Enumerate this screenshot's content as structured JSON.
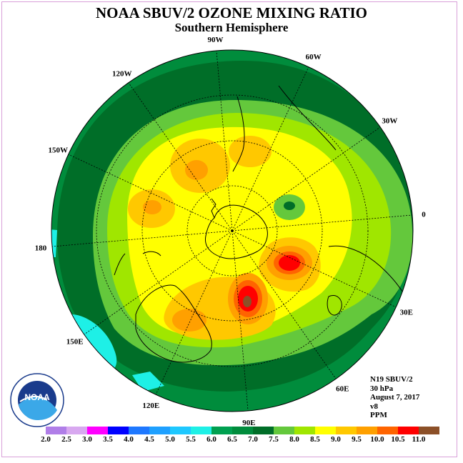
{
  "title": "NOAA SBUV/2 OZONE MIXING RATIO",
  "subtitle": "Southern Hemisphere",
  "logo_text": "NOAA",
  "longitude_labels": [
    {
      "text": "90W",
      "lon": -90
    },
    {
      "text": "60W",
      "lon": -60
    },
    {
      "text": "30W",
      "lon": -30
    },
    {
      "text": "0",
      "lon": 0
    },
    {
      "text": "30E",
      "lon": 30
    },
    {
      "text": "60E",
      "lon": 60
    },
    {
      "text": "90E",
      "lon": 90
    },
    {
      "text": "120E",
      "lon": 120
    },
    {
      "text": "150E",
      "lon": 150
    },
    {
      "text": "180",
      "lon": 180
    },
    {
      "text": "150W",
      "lon": -150
    },
    {
      "text": "120W",
      "lon": -120
    }
  ],
  "info": {
    "satellite": "N19 SBUV/2",
    "level": "30 hPa",
    "date": "August 7, 2017",
    "version": "v8",
    "units": "PPM"
  },
  "scale": {
    "labels": [
      "2.0",
      "2.5",
      "3.0",
      "3.5",
      "4.0",
      "4.5",
      "5.0",
      "5.5",
      "6.0",
      "6.5",
      "7.0",
      "7.5",
      "8.0",
      "8.5",
      "9.0",
      "9.5",
      "10.0",
      "10.5",
      "11.0"
    ],
    "colors": [
      "#b07ee8",
      "#d8a8f0",
      "#ff00ff",
      "#0000ff",
      "#1e78ff",
      "#1ea0ff",
      "#1ec8ff",
      "#1ef0e6",
      "#00a050",
      "#008c3c",
      "#006e28",
      "#64c83c",
      "#a0e600",
      "#ffff00",
      "#ffc800",
      "#ffa000",
      "#ff6400",
      "#ff0000",
      "#8c5028"
    ]
  }
}
